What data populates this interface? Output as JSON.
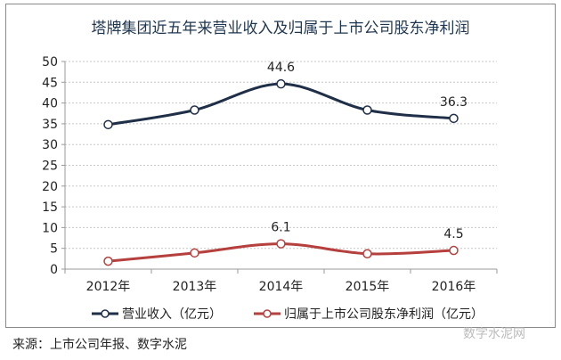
{
  "chart_data": {
    "type": "line",
    "title": "塔牌集团近五年来营业收入及归属于上市公司股东净利润",
    "categories": [
      "2012年",
      "2013年",
      "2014年",
      "2015年",
      "2016年"
    ],
    "ylim": [
      0,
      50
    ],
    "yticks": [
      "0",
      "5",
      "10",
      "15",
      "20",
      "25",
      "30",
      "35",
      "40",
      "45",
      "50"
    ],
    "grid": true,
    "legend_position": "bottom",
    "series": [
      {
        "name": "营业收入（亿元）",
        "values": [
          34.8,
          38.3,
          44.6,
          38.3,
          36.3
        ],
        "color": "#1f2f48",
        "data_labels": [
          null,
          null,
          "44.6",
          null,
          "36.3"
        ]
      },
      {
        "name": "归属于上市公司股东净利润（亿元）",
        "values": [
          1.9,
          3.9,
          6.1,
          3.7,
          4.5
        ],
        "color": "#b5403d",
        "data_labels": [
          null,
          null,
          "6.1",
          null,
          "4.5"
        ]
      }
    ]
  },
  "source": "来源：上市公司年报、数字水泥",
  "watermark": "数字水泥网"
}
